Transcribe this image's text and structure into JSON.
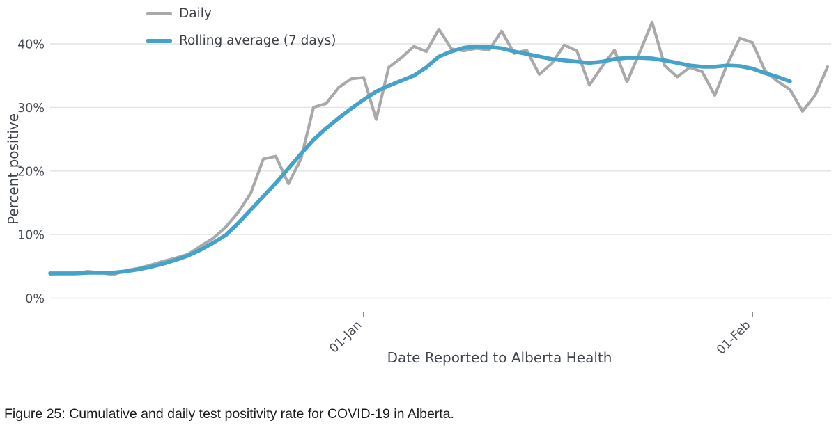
{
  "caption": "Figure 25: Cumulative and daily test positivity rate for COVID-19 in Alberta.",
  "colors": {
    "daily": "#a9a9a9",
    "rolling": "#45a2c9",
    "gridline": "#e3e3e3",
    "axis_text": "#444444"
  },
  "chart_data": {
    "type": "line",
    "title": "",
    "xlabel": "Date Reported to Alberta Health",
    "ylabel": "Percent positive",
    "grid": true,
    "legend_position": "top-left",
    "ylim": [
      -2.2,
      46.2
    ],
    "n_points": 63,
    "y_ticks": [
      {
        "value": 0,
        "label": "0%"
      },
      {
        "value": 10,
        "label": "10%"
      },
      {
        "value": 20,
        "label": "20%"
      },
      {
        "value": 30,
        "label": "30%"
      },
      {
        "value": 40,
        "label": "40%"
      }
    ],
    "x_ticks": [
      {
        "index": 25,
        "label": "01-Jan"
      },
      {
        "index": 56,
        "label": "01-Feb"
      }
    ],
    "series": [
      {
        "name": "Daily",
        "color": "#a9a9a9",
        "values": [
          3.8,
          3.9,
          3.9,
          4.2,
          4.0,
          3.7,
          4.3,
          4.7,
          5.2,
          5.8,
          6.3,
          6.9,
          8.2,
          9.4,
          11.2,
          13.5,
          16.5,
          21.9,
          22.3,
          18.0,
          21.9,
          30.0,
          30.6,
          33.1,
          34.5,
          34.7,
          28.1,
          36.3,
          37.8,
          39.6,
          38.8,
          42.3,
          39.2,
          38.9,
          39.3,
          39.0,
          42.0,
          38.5,
          39.0,
          35.2,
          36.9,
          39.8,
          38.9,
          33.5,
          36.4,
          39.0,
          34.0,
          38.6,
          43.4,
          36.6,
          34.8,
          36.3,
          35.6,
          31.9,
          36.8,
          40.9,
          40.2,
          35.8,
          34.1,
          32.8,
          29.4,
          31.9,
          36.4
        ]
      },
      {
        "name": "Rolling average (7 days)",
        "color": "#45a2c9",
        "values": [
          3.9,
          3.9,
          3.9,
          4.0,
          4.0,
          4.0,
          4.2,
          4.5,
          4.9,
          5.4,
          6.0,
          6.7,
          7.6,
          8.7,
          9.9,
          11.8,
          13.9,
          16.0,
          18.1,
          20.4,
          22.7,
          24.9,
          26.7,
          28.3,
          29.8,
          31.2,
          32.5,
          33.4,
          34.2,
          35.0,
          36.3,
          38.0,
          38.8,
          39.4,
          39.6,
          39.5,
          39.3,
          38.8,
          38.4,
          38.0,
          37.6,
          37.4,
          37.2,
          37.0,
          37.2,
          37.6,
          37.8,
          37.8,
          37.7,
          37.4,
          37.0,
          36.6,
          36.4,
          36.4,
          36.6,
          36.5,
          36.1,
          35.4,
          34.8,
          34.1
        ]
      }
    ]
  }
}
